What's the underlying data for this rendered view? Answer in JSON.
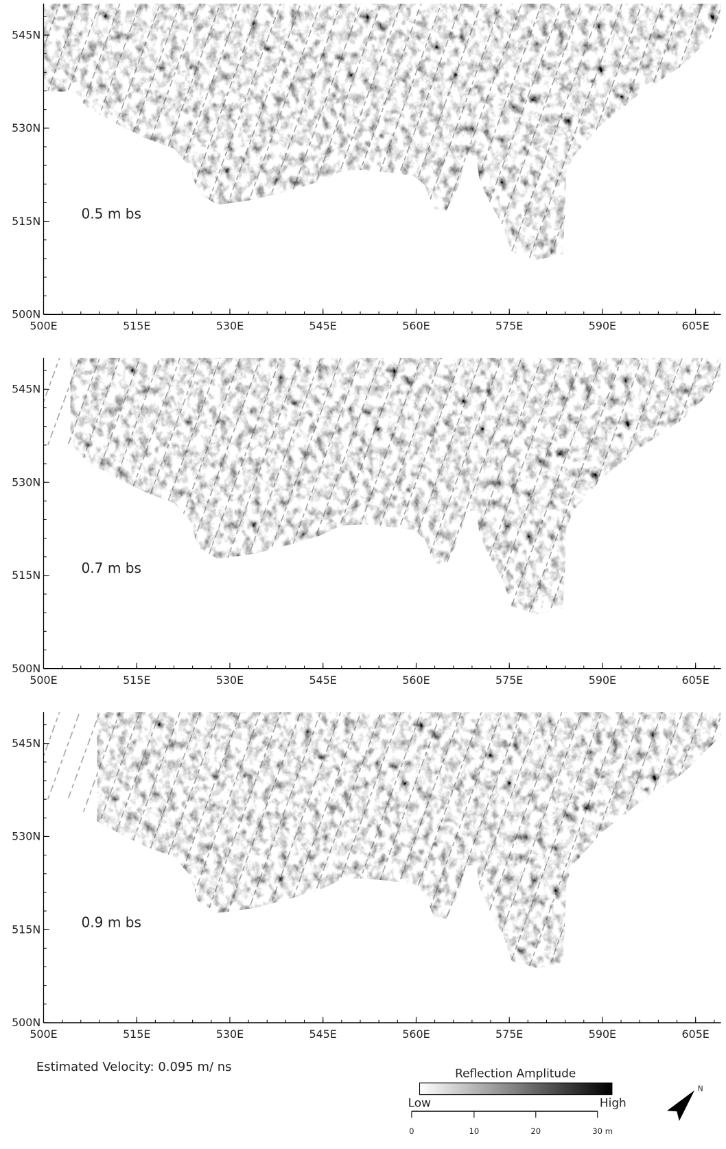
{
  "panels": [
    {
      "depth": "0.5 m bs"
    },
    {
      "depth": "0.7 m bs"
    },
    {
      "depth": "0.9 m bs"
    }
  ],
  "x_tick_labels": [
    "500E",
    "515E",
    "530E",
    "545E",
    "560E",
    "575E",
    "590E",
    "605E"
  ],
  "y_tick_labels": [
    "500N",
    "515N",
    "530N",
    "545N"
  ],
  "velocity_note": "Estimated Velocity: 0.095 m/ ns",
  "legend": {
    "title": "Reflection Amplitude",
    "low": "Low",
    "high": "High"
  },
  "scale_bar": {
    "labels": [
      "0",
      "10",
      "20",
      "30 m"
    ]
  }
}
